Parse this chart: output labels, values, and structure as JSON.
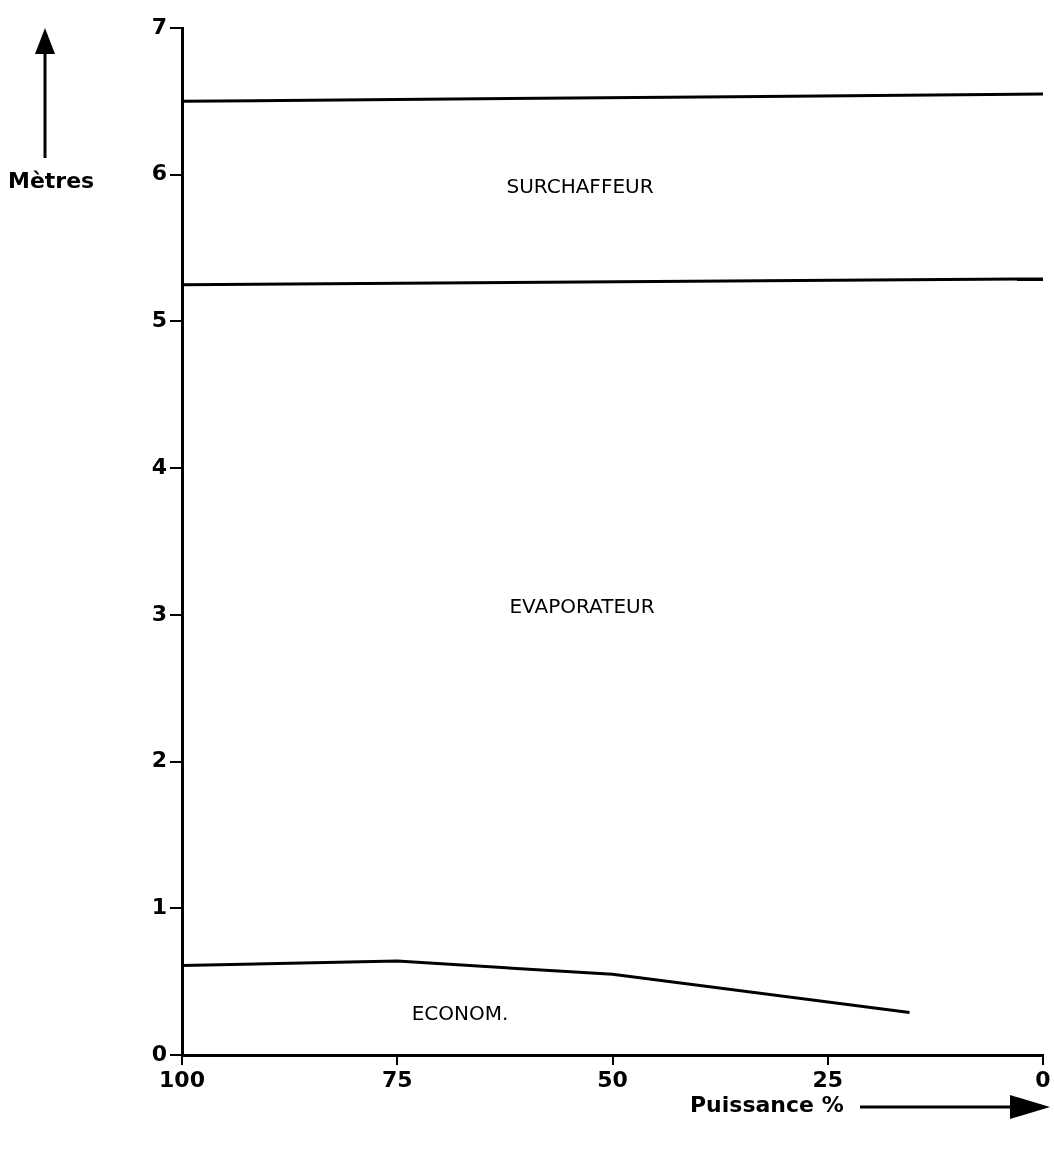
{
  "chart_data": {
    "type": "line",
    "xlabel": "Puissance %",
    "ylabel": "Mètres",
    "xlim": [
      100,
      0
    ],
    "xticks": [
      100,
      75,
      50,
      25,
      0
    ],
    "ylim": [
      0,
      7
    ],
    "yticks": [
      0,
      1,
      2,
      3,
      4,
      5,
      6,
      7
    ],
    "grid": false,
    "legend": false,
    "marker": "none",
    "line_style": "solid",
    "series": [
      {
        "color": "#000000",
        "x": [
          100,
          0
        ],
        "values": [
          6.5,
          6.55
        ]
      },
      {
        "color": "#000000",
        "x": [
          100,
          0
        ],
        "values": [
          5.25,
          5.29
        ]
      },
      {
        "color": "#000000",
        "x": [
          100,
          75,
          50,
          15.5
        ],
        "values": [
          0.61,
          0.64,
          0.55,
          0.29
        ]
      }
    ],
    "annotations": [
      "SURCHAFFEUR",
      "EVAPORATEUR",
      "ECONOM."
    ]
  }
}
